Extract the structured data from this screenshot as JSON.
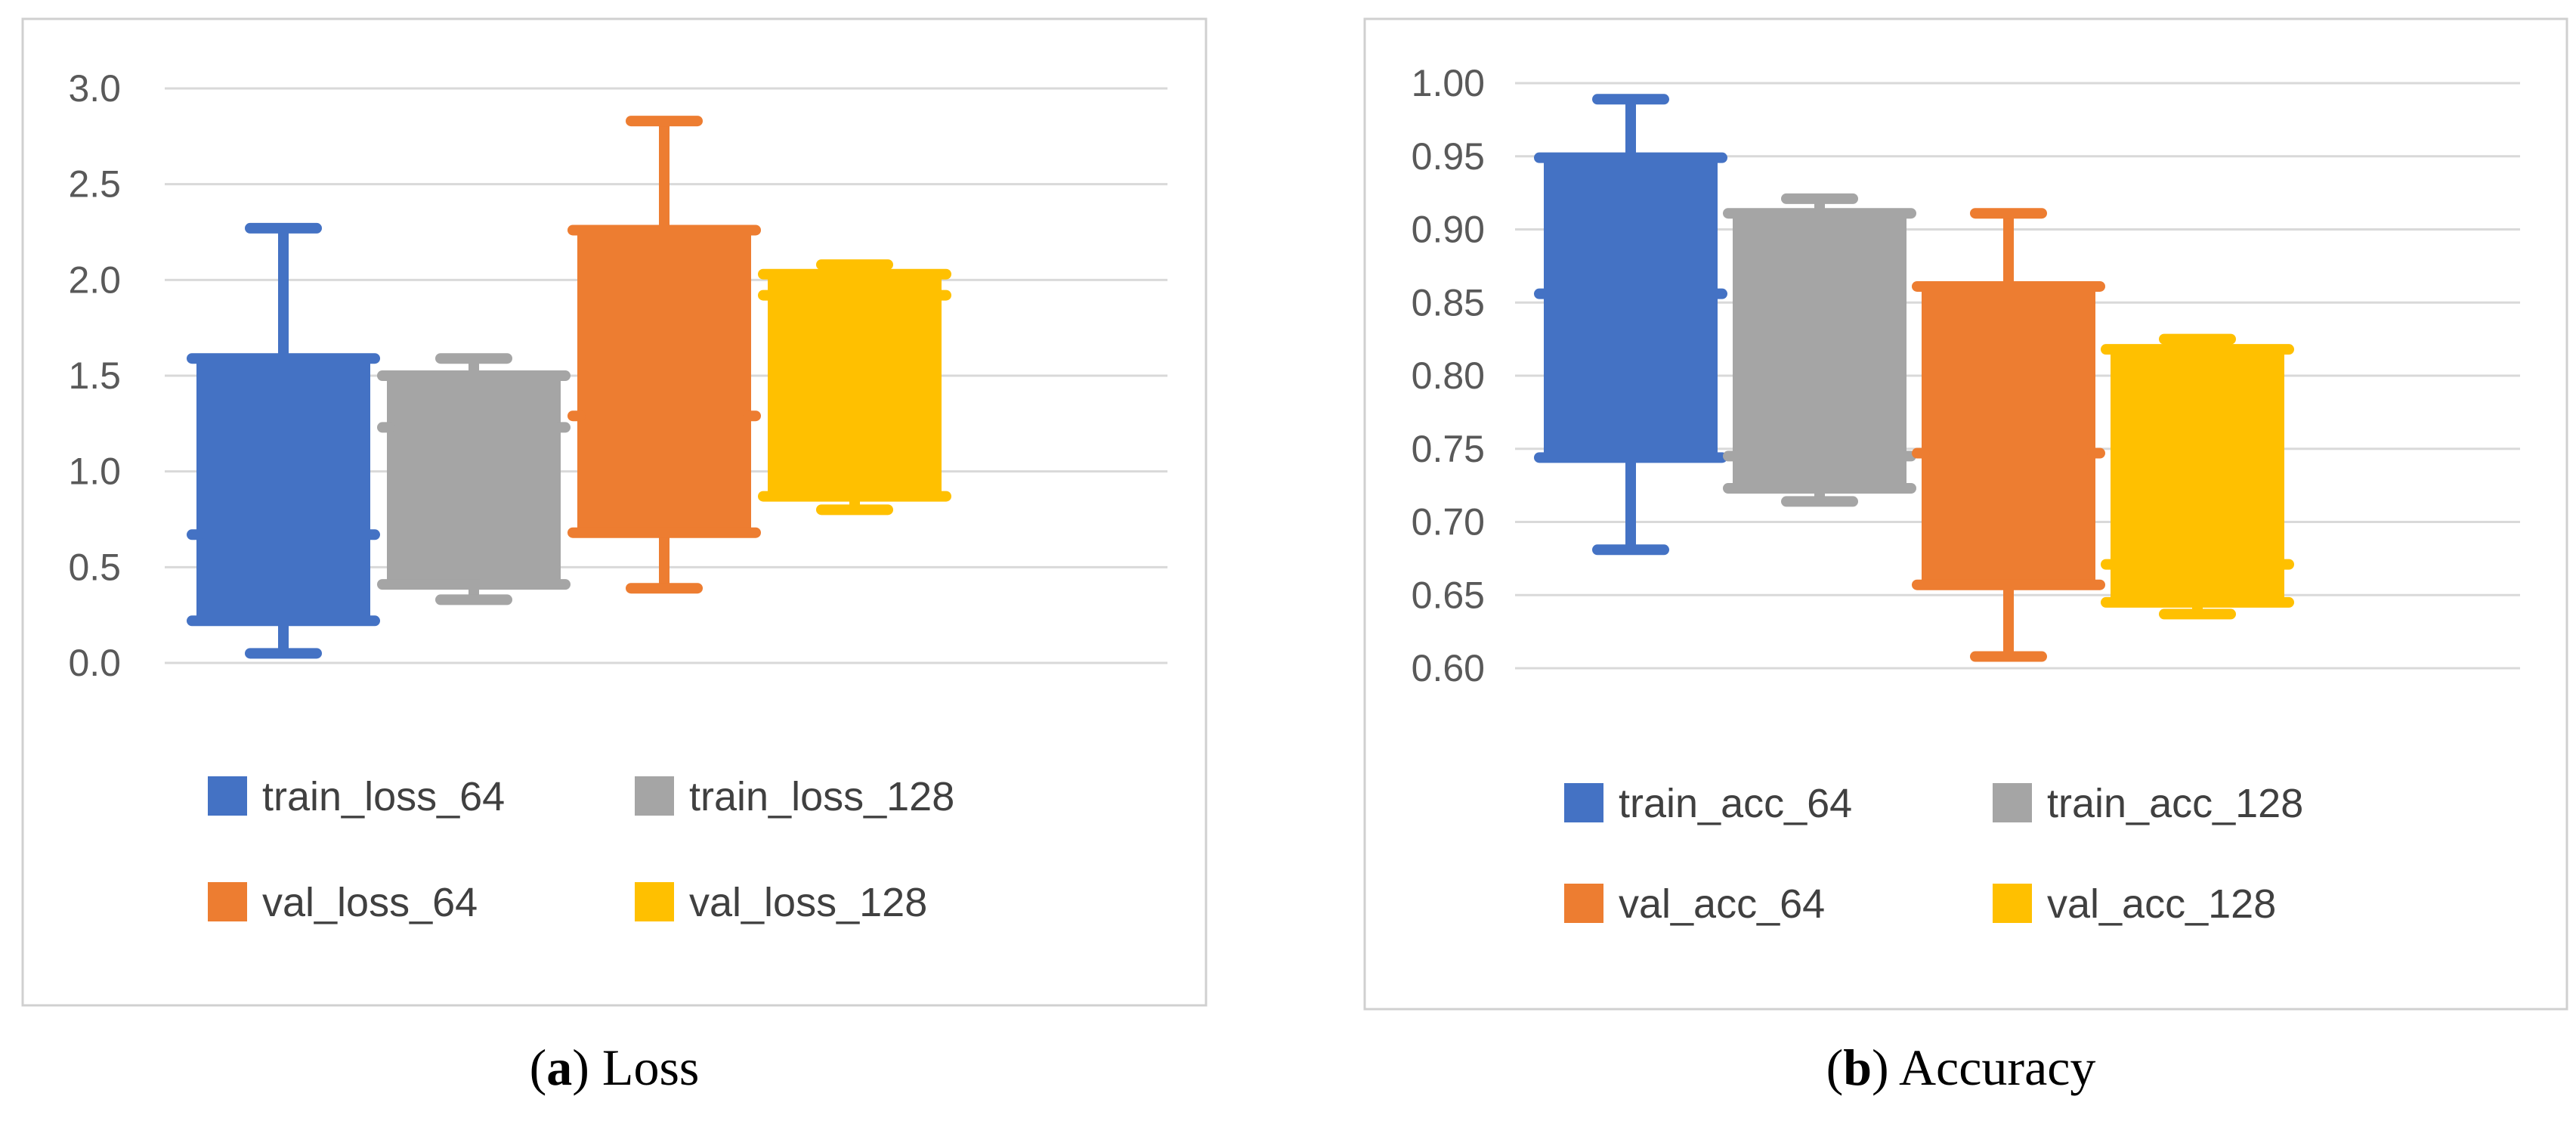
{
  "colors": {
    "blue": "#4472C4",
    "gray": "#A5A5A5",
    "orange": "#ED7D31",
    "yellow": "#FFC000",
    "grid": "#D9D9D9",
    "frame": "#D0D0D0"
  },
  "chart_data": [
    {
      "type": "box",
      "caption": {
        "letter": "a",
        "text": " Loss"
      },
      "ylim": [
        0,
        3.0
      ],
      "yticks": [
        "0.0",
        "0.5",
        "1.0",
        "1.5",
        "2.0",
        "2.5",
        "3.0"
      ],
      "grid": true,
      "legend_position": "bottom",
      "series": [
        {
          "name": "train_loss_64",
          "color": "blue",
          "min": 0.05,
          "q1": 0.22,
          "median": 0.67,
          "q3": 1.59,
          "max": 2.27
        },
        {
          "name": "train_loss_128",
          "color": "gray",
          "min": 0.33,
          "q1": 0.41,
          "median": 1.23,
          "q3": 1.5,
          "max": 1.59
        },
        {
          "name": "val_loss_64",
          "color": "orange",
          "min": 0.39,
          "q1": 0.68,
          "median": 1.29,
          "q3": 2.26,
          "max": 2.83
        },
        {
          "name": "val_loss_128",
          "color": "yellow",
          "min": 0.8,
          "q1": 0.87,
          "median": 1.92,
          "q3": 2.03,
          "max": 2.08
        }
      ]
    },
    {
      "type": "box",
      "caption": {
        "letter": "b",
        "text": " Accuracy"
      },
      "ylim": [
        0.6,
        1.0
      ],
      "yticks": [
        "0.60",
        "0.65",
        "0.70",
        "0.75",
        "0.80",
        "0.85",
        "0.90",
        "0.95",
        "1.00"
      ],
      "grid": true,
      "legend_position": "bottom",
      "series": [
        {
          "name": "train_acc_64",
          "color": "blue",
          "min": 0.681,
          "q1": 0.744,
          "median": 0.856,
          "q3": 0.949,
          "max": 0.989
        },
        {
          "name": "train_acc_128",
          "color": "gray",
          "min": 0.714,
          "q1": 0.723,
          "median": 0.745,
          "q3": 0.911,
          "max": 0.921
        },
        {
          "name": "val_acc_64",
          "color": "orange",
          "min": 0.608,
          "q1": 0.657,
          "median": 0.747,
          "q3": 0.861,
          "max": 0.911
        },
        {
          "name": "val_acc_128",
          "color": "yellow",
          "min": 0.637,
          "q1": 0.645,
          "median": 0.671,
          "q3": 0.818,
          "max": 0.825
        }
      ]
    }
  ]
}
